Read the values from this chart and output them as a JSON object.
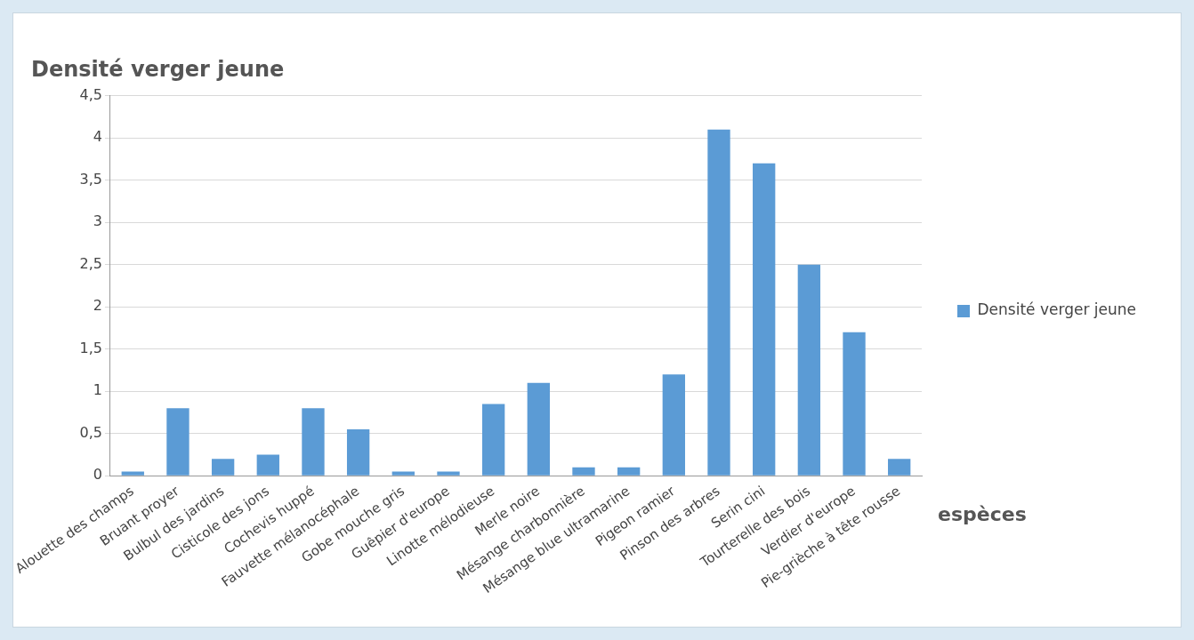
{
  "chart_data": {
    "type": "bar",
    "title": "Densité verger jeune",
    "xlabel": "espèces",
    "categories": [
      "Alouette des champs",
      "Bruant proyer",
      "Bulbul des jardins",
      "Cisticole des jons",
      "Cochevis huppé",
      "Fauvette mélanocéphale",
      "Gobe mouche gris",
      "Guêpier d'europe",
      "Linotte mélodieuse",
      "Merle noire",
      "Mésange charbonnière",
      "Mésange blue ultramarine",
      "Pigeon ramier",
      "Pinson des arbres",
      "Serin cini",
      "Tourterelle des bois",
      "Verdier d'europe",
      "Pie-grièche à tête rousse"
    ],
    "series": [
      {
        "name": "Densité verger jeune",
        "color": "#5b9bd5",
        "values": [
          0.05,
          0.8,
          0.2,
          0.25,
          0.8,
          0.55,
          0.05,
          0.05,
          0.85,
          1.1,
          0.1,
          0.1,
          1.2,
          4.1,
          3.7,
          2.5,
          1.7,
          0.2
        ]
      }
    ],
    "ylim": [
      0,
      4.5
    ],
    "yticks": [
      0,
      {
        "value": 0.5,
        "label": "0,5"
      },
      1,
      {
        "value": 1.5,
        "label": "1,5"
      },
      2,
      {
        "value": 2.5,
        "label": "2,5"
      },
      3,
      {
        "value": 3.5,
        "label": "3,5"
      },
      4,
      {
        "value": 4.5,
        "label": "4,5"
      }
    ],
    "grid": "y",
    "legend": "right"
  }
}
